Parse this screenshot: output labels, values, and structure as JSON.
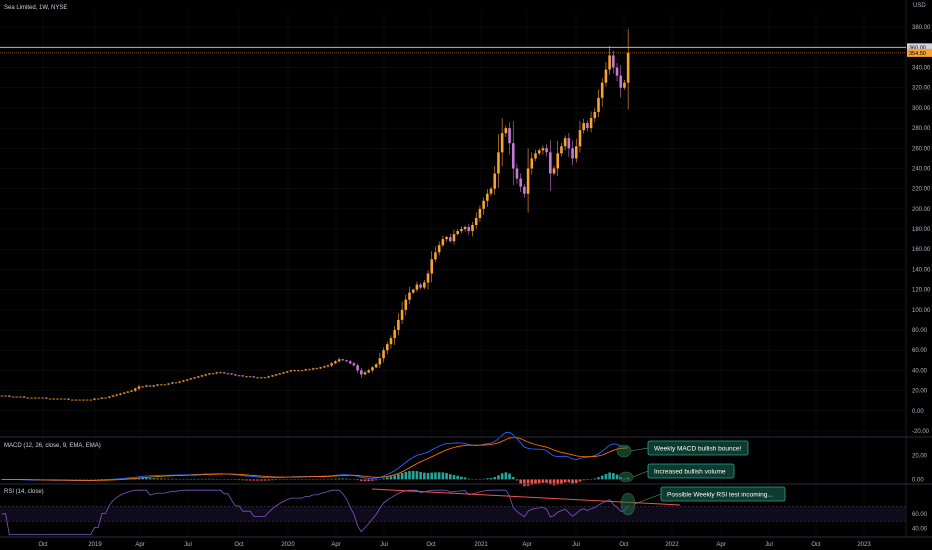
{
  "chart_data": [
    {
      "type": "candlestick",
      "title": "Sea Limited, 1W, NYSE",
      "currency": "USD",
      "ylim": [
        -25,
        395
      ],
      "yticks": [
        "-20.00",
        "0.00",
        "20.00",
        "40.00",
        "60.00",
        "80.00",
        "100.00",
        "120.00",
        "140.00",
        "160.00",
        "180.00",
        "200.00",
        "220.00",
        "240.00",
        "260.00",
        "280.00",
        "300.00",
        "320.00",
        "340.00",
        "380.00"
      ],
      "ytick_values": [
        -20,
        0,
        20,
        40,
        60,
        80,
        100,
        120,
        140,
        160,
        180,
        200,
        220,
        240,
        260,
        280,
        300,
        320,
        340,
        380
      ],
      "xlabels": [
        "Oct",
        "2019",
        "Apr",
        "Jul",
        "Oct",
        "2020",
        "Apr",
        "Jul",
        "Oct",
        "2021",
        "Apr",
        "Jul",
        "Oct",
        "2022",
        "Apr",
        "Jul",
        "Oct",
        "2023"
      ],
      "price_labels": {
        "high": "360.00",
        "last": "354.50"
      },
      "high_line": 360,
      "last_line": 354.5,
      "colors": {
        "up": "#f7a233",
        "down": "#c47ad6",
        "grid": "#1a1a1a"
      },
      "close_series": [
        15,
        15,
        14,
        14,
        14,
        14,
        13,
        13,
        13,
        13,
        13,
        13,
        12,
        12,
        12,
        12,
        12,
        12,
        11,
        11,
        11,
        11,
        11,
        11,
        11,
        12,
        12,
        13,
        13,
        14,
        15,
        16,
        17,
        18,
        19,
        20,
        22,
        24,
        24,
        25,
        24,
        25,
        26,
        26,
        26,
        27,
        28,
        28,
        29,
        30,
        31,
        32,
        33,
        34,
        35,
        36,
        37,
        37,
        38,
        38,
        37,
        37,
        36,
        35,
        35,
        34,
        34,
        34,
        33,
        33,
        33,
        33,
        34,
        35,
        36,
        37,
        38,
        39,
        40,
        40,
        40,
        40,
        41,
        41,
        42,
        42,
        43,
        44,
        45,
        47,
        49,
        51,
        50,
        49,
        47,
        45,
        40,
        36,
        38,
        40,
        43,
        46,
        52,
        60,
        66,
        72,
        80,
        90,
        100,
        110,
        117,
        120,
        125,
        122,
        127,
        136,
        150,
        157,
        164,
        170,
        172,
        168,
        175,
        178,
        180,
        182,
        178,
        184,
        191,
        200,
        208,
        215,
        220,
        235,
        256,
        275,
        280,
        265,
        240,
        230,
        222,
        215,
        240,
        250,
        255,
        258,
        260,
        256,
        235,
        240,
        255,
        262,
        270,
        260,
        250,
        262,
        278,
        285,
        280,
        290,
        296,
        310,
        325,
        338,
        352,
        340,
        332,
        320,
        325,
        354.5
      ],
      "series": [
        {
          "name": "MACD (12, 26, close, 9, EMA, EMA)",
          "ylim": [
            -3,
            32
          ],
          "yticks": [
            "20.00",
            "0.00"
          ],
          "ytick_values": [
            20,
            0
          ]
        },
        {
          "name": "RSI (14, close)",
          "ylim": [
            30,
            95
          ],
          "yticks": [
            "60.00",
            "40.00"
          ],
          "ytick_values": [
            60,
            40
          ],
          "bands": [
            70,
            50
          ]
        }
      ],
      "annotations": [
        "Weekly MACD bullish bounce!",
        "Increased bullish volume",
        "Possible Weekly RSI test incoming..."
      ]
    }
  ]
}
